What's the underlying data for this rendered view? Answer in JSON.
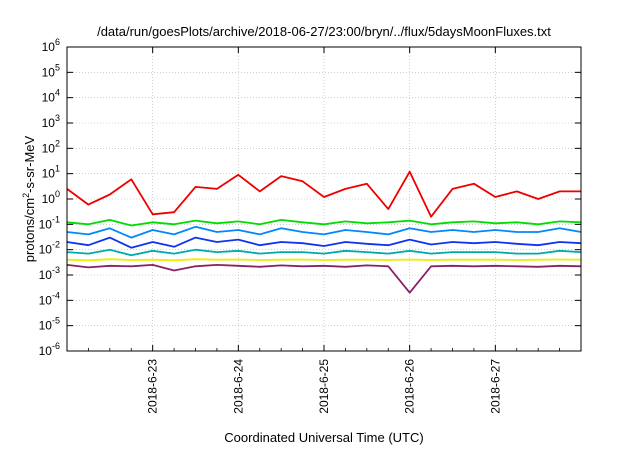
{
  "chart_data": {
    "type": "line",
    "title": "/data/run/goesPlots/archive/2018-06-27/23:00/bryn/../flux/5daysMoonFluxes.txt",
    "xlabel": "Coordinated Universal Time (UTC)",
    "ylabel": {
      "pre": "protons/cm",
      "sup": "2",
      "post": "-s-sr-MeV"
    },
    "x_range": [
      "2018-06-22 00:00",
      "2018-06-28 00:00"
    ],
    "x_ticks": [
      "2018-6-23",
      "2018-6-24",
      "2018-6-25",
      "2018-6-26",
      "2018-6-27"
    ],
    "y_scale": "log",
    "ylim": [
      1e-06,
      1000000.0
    ],
    "y_ticks": [
      {
        "base": "10",
        "exp": "-6"
      },
      {
        "base": "10",
        "exp": "-5"
      },
      {
        "base": "10",
        "exp": "-4"
      },
      {
        "base": "10",
        "exp": "-3"
      },
      {
        "base": "10",
        "exp": "-2"
      },
      {
        "base": "10",
        "exp": "-1"
      },
      {
        "base": "10",
        "exp": "0"
      },
      {
        "base": "10",
        "exp": "1"
      },
      {
        "base": "10",
        "exp": "2"
      },
      {
        "base": "10",
        "exp": "3"
      },
      {
        "base": "10",
        "exp": "4"
      },
      {
        "base": "10",
        "exp": "5"
      },
      {
        "base": "10",
        "exp": "6"
      }
    ],
    "grid": true,
    "legend": "none",
    "x_days": [
      0,
      0.25,
      0.5,
      0.75,
      1.0,
      1.25,
      1.5,
      1.75,
      2.0,
      2.25,
      2.5,
      2.75,
      3.0,
      3.25,
      3.5,
      3.75,
      4.0,
      4.25,
      4.5,
      4.75,
      5.0,
      5.25,
      5.5,
      5.75,
      6.0
    ],
    "series": [
      {
        "color": "#ee0000",
        "values": [
          2.5,
          0.6,
          1.5,
          6,
          0.25,
          0.3,
          3,
          2.5,
          9,
          2,
          8,
          5,
          1.2,
          2.5,
          4,
          0.4,
          12,
          0.2,
          2.5,
          4,
          1.2,
          2,
          1,
          2,
          2
        ]
      },
      {
        "color": "#00dd00",
        "values": [
          0.12,
          0.1,
          0.15,
          0.09,
          0.12,
          0.1,
          0.14,
          0.11,
          0.13,
          0.1,
          0.15,
          0.12,
          0.1,
          0.13,
          0.11,
          0.12,
          0.14,
          0.1,
          0.12,
          0.13,
          0.11,
          0.12,
          0.1,
          0.13,
          0.12
        ]
      },
      {
        "color": "#0088ff",
        "values": [
          0.05,
          0.04,
          0.07,
          0.03,
          0.06,
          0.04,
          0.08,
          0.05,
          0.06,
          0.04,
          0.07,
          0.05,
          0.04,
          0.06,
          0.05,
          0.04,
          0.07,
          0.05,
          0.06,
          0.05,
          0.06,
          0.05,
          0.05,
          0.07,
          0.05
        ]
      },
      {
        "color": "#1133ee",
        "values": [
          0.02,
          0.015,
          0.03,
          0.012,
          0.02,
          0.013,
          0.03,
          0.02,
          0.025,
          0.015,
          0.02,
          0.018,
          0.014,
          0.02,
          0.017,
          0.015,
          0.025,
          0.016,
          0.02,
          0.018,
          0.02,
          0.017,
          0.015,
          0.02,
          0.018
        ]
      },
      {
        "color": "#00aaaa",
        "values": [
          0.008,
          0.007,
          0.01,
          0.006,
          0.009,
          0.007,
          0.01,
          0.008,
          0.009,
          0.007,
          0.008,
          0.008,
          0.007,
          0.009,
          0.008,
          0.007,
          0.009,
          0.007,
          0.008,
          0.008,
          0.008,
          0.007,
          0.007,
          0.009,
          0.008
        ]
      },
      {
        "color": "#eeee00",
        "values": [
          0.004,
          0.0038,
          0.0042,
          0.0039,
          0.004,
          0.0038,
          0.0042,
          0.004,
          0.0041,
          0.0039,
          0.004,
          0.0041,
          0.0039,
          0.004,
          0.004,
          0.0039,
          0.0041,
          0.0039,
          0.004,
          0.004,
          0.004,
          0.0039,
          0.004,
          0.0041,
          0.004
        ]
      },
      {
        "color": "#882266",
        "values": [
          0.0025,
          0.002,
          0.0023,
          0.0022,
          0.0025,
          0.0015,
          0.0022,
          0.0025,
          0.0023,
          0.0021,
          0.0024,
          0.0022,
          0.0023,
          0.0021,
          0.0024,
          0.0022,
          0.0002,
          0.0022,
          0.0023,
          0.0022,
          0.0023,
          0.0022,
          0.0021,
          0.0023,
          0.0022
        ]
      }
    ]
  }
}
